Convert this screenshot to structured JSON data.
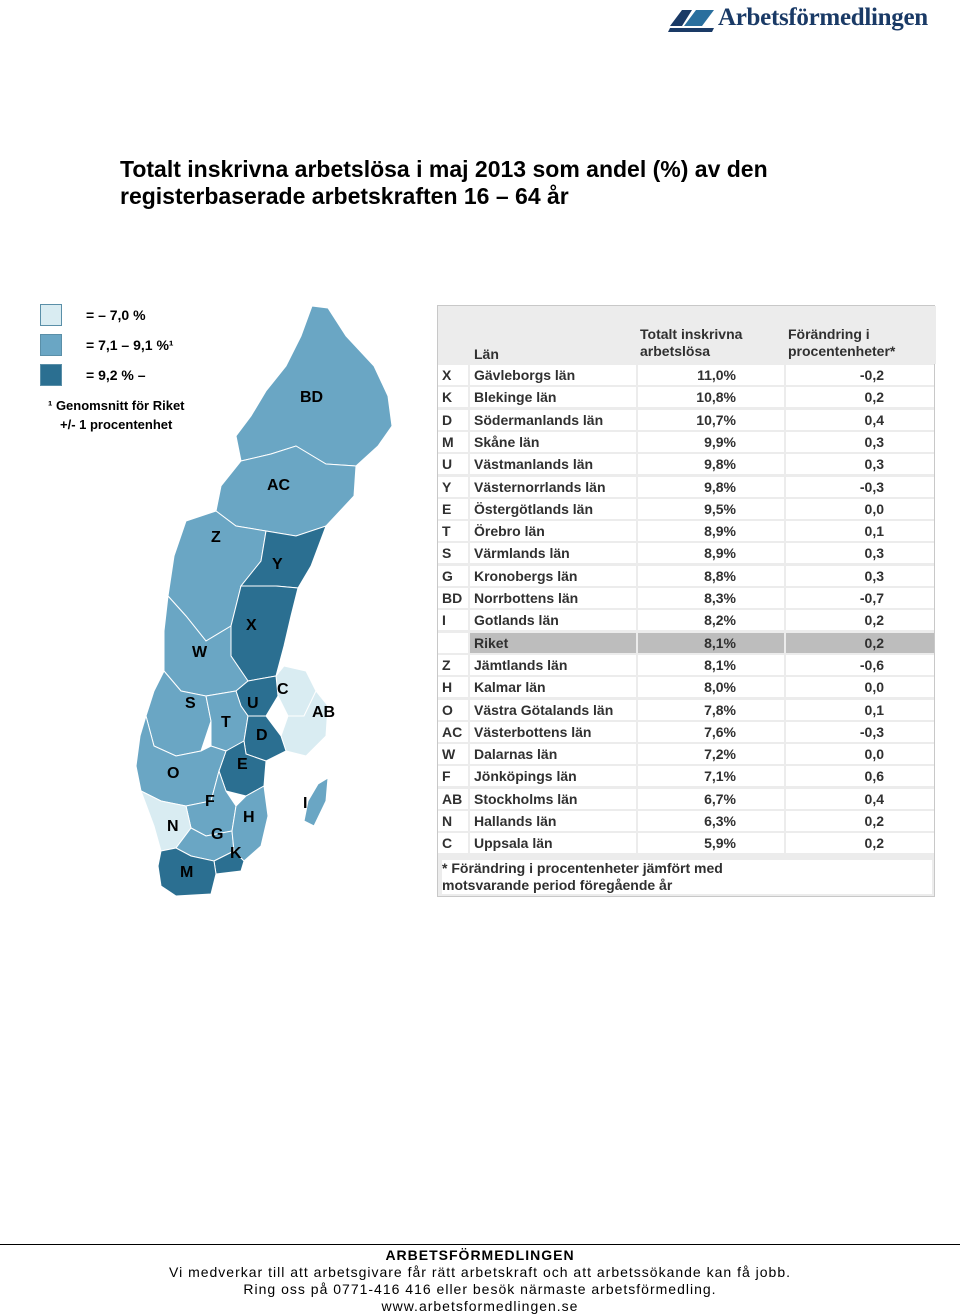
{
  "header": {
    "logo_text": "Arbetsförmedlingen"
  },
  "title": {
    "line1": "Totalt inskrivna arbetslösa i maj 2013 som andel (%) av den",
    "line2": "registerbaserade arbetskraften 16 – 64 år"
  },
  "legend": {
    "items": [
      {
        "label": "= – 7,0 %",
        "color": "#d9ecf2"
      },
      {
        "label": "= 7,1 – 9,1 %¹",
        "color": "#6aa6c4"
      },
      {
        "label": "= 9,2 % –",
        "color": "#2b6f91"
      }
    ],
    "note_line1": "¹ Genomsnitt för Riket",
    "note_line2": "+/- 1 procentenhet"
  },
  "map_labels": [
    "BD",
    "AC",
    "Z",
    "Y",
    "X",
    "W",
    "C",
    "AB",
    "S",
    "U",
    "T",
    "D",
    "E",
    "O",
    "F",
    "I",
    "N",
    "G",
    "H",
    "K",
    "M"
  ],
  "table": {
    "header": {
      "lan": "Län",
      "total": [
        "Totalt inskrivna",
        "arbetslösa"
      ],
      "change": [
        "Förändring i",
        "procentenheter*"
      ]
    },
    "rows": [
      {
        "code": "X",
        "lan": "Gävleborgs län",
        "total": "11,0%",
        "change": "-0,2"
      },
      {
        "code": "K",
        "lan": "Blekinge län",
        "total": "10,8%",
        "change": "0,2"
      },
      {
        "code": "D",
        "lan": "Södermanlands län",
        "total": "10,7%",
        "change": "0,4"
      },
      {
        "code": "M",
        "lan": "Skåne län",
        "total": "9,9%",
        "change": "0,3"
      },
      {
        "code": "U",
        "lan": "Västmanlands län",
        "total": "9,8%",
        "change": "0,3"
      },
      {
        "code": "Y",
        "lan": "Västernorrlands län",
        "total": "9,8%",
        "change": "-0,3"
      },
      {
        "code": "E",
        "lan": "Östergötlands län",
        "total": "9,5%",
        "change": "0,0"
      },
      {
        "code": "T",
        "lan": "Örebro län",
        "total": "8,9%",
        "change": "0,1"
      },
      {
        "code": "S",
        "lan": "Värmlands län",
        "total": "8,9%",
        "change": "0,3"
      },
      {
        "code": "G",
        "lan": "Kronobergs län",
        "total": "8,8%",
        "change": "0,3"
      },
      {
        "code": "BD",
        "lan": "Norrbottens län",
        "total": "8,3%",
        "change": "-0,7"
      },
      {
        "code": "I",
        "lan": "Gotlands län",
        "total": "8,2%",
        "change": "0,2"
      },
      {
        "code": "",
        "lan": "Riket",
        "total": "8,1%",
        "change": "0,2"
      },
      {
        "code": "Z",
        "lan": "Jämtlands län",
        "total": "8,1%",
        "change": "-0,6"
      },
      {
        "code": "H",
        "lan": "Kalmar län",
        "total": "8,0%",
        "change": "0,0"
      },
      {
        "code": "O",
        "lan": "Västra Götalands län",
        "total": "7,8%",
        "change": "0,1"
      },
      {
        "code": "AC",
        "lan": "Västerbottens län",
        "total": "7,6%",
        "change": "-0,3"
      },
      {
        "code": "W",
        "lan": "Dalarnas län",
        "total": "7,2%",
        "change": "0,0"
      },
      {
        "code": "F",
        "lan": "Jönköpings län",
        "total": "7,1%",
        "change": "0,6"
      },
      {
        "code": "AB",
        "lan": "Stockholms län",
        "total": "6,7%",
        "change": "0,4"
      },
      {
        "code": "N",
        "lan": "Hallands län",
        "total": "6,3%",
        "change": "0,2"
      },
      {
        "code": "C",
        "lan": "Uppsala län",
        "total": "5,9%",
        "change": "0,2"
      }
    ],
    "footnote_line1": "* Förändring i procentenheter jämfört med",
    "footnote_line2": "motsvarande period föregående år"
  },
  "footer": {
    "org": "ARBETSFÖRMEDLINGEN",
    "line1": "Vi medverkar till att arbetsgivare får rätt arbetskraft och att arbetssökande kan få jobb.",
    "line2": "Ring oss på 0771-416 416 eller besök närmaste arbetsförmedling.",
    "url": "www.arbetsformedlingen.se"
  }
}
